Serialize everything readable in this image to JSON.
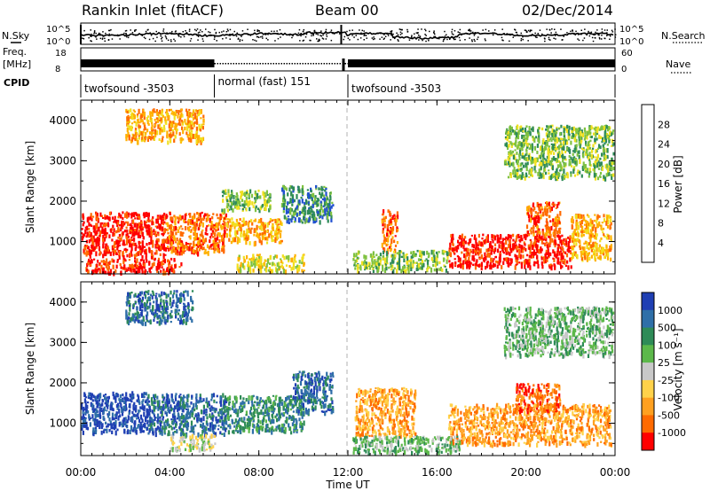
{
  "header": {
    "title": "Rankin Inlet (fitACF)",
    "beam": "Beam 00",
    "date": "02/Dec/2014"
  },
  "summary_panel": {
    "left_label_1": "N.Sky",
    "left_label_2": "Freq.",
    "left_label_3": "[MHz]",
    "cpid_label": "CPID",
    "right_label_1": "N.Search",
    "right_label_2": "Nave",
    "nsky_ticks": [
      "10^5",
      "10^0"
    ],
    "freq_ticks": [
      "18",
      "8"
    ],
    "nave_ticks": [
      "60",
      "0"
    ],
    "cpid_segments": [
      {
        "start_h": 0,
        "end_h": 6,
        "label": "twofsound -3503"
      },
      {
        "start_h": 6,
        "end_h": 12,
        "label": "normal (fast) 151"
      },
      {
        "start_h": 12,
        "end_h": 24,
        "label": "twofsound -3503"
      }
    ]
  },
  "x_axis": {
    "label": "Time UT",
    "ticks": [
      "00:00",
      "04:00",
      "08:00",
      "12:00",
      "16:00",
      "20:00",
      "00:00"
    ]
  },
  "chart_data": [
    {
      "type": "heatmap",
      "ylabel": "Slant Range [km]",
      "xlim_hours": [
        0,
        24
      ],
      "ylim": [
        200,
        4500
      ],
      "yticks": [
        "1000",
        "2000",
        "3000",
        "4000"
      ],
      "colorbar": {
        "label": "Power [dB]",
        "ticks": [
          "4",
          "8",
          "12",
          "16",
          "20",
          "24",
          "28"
        ],
        "colors": [
          "#0000ff",
          "#2050d0",
          "#2e8b57",
          "#7fc241",
          "#f0e020",
          "#ffb000",
          "#ff6a00",
          "#ff0000"
        ]
      },
      "echo_regions": [
        {
          "t0": 0.0,
          "t1": 3.8,
          "r0": 650,
          "r1": 1750,
          "level": 7
        },
        {
          "t0": 3.8,
          "t1": 6.5,
          "r0": 750,
          "r1": 1750,
          "level": 6
        },
        {
          "t0": 6.5,
          "t1": 9.0,
          "r0": 1000,
          "r1": 1600,
          "level": 5
        },
        {
          "t0": 9.0,
          "t1": 11.3,
          "r0": 1500,
          "r1": 2400,
          "level": 2
        },
        {
          "t0": 13.5,
          "t1": 14.2,
          "r0": 800,
          "r1": 1800,
          "level": 6
        },
        {
          "t0": 16.5,
          "t1": 22.0,
          "r0": 400,
          "r1": 1200,
          "level": 7
        },
        {
          "t0": 22.0,
          "t1": 23.8,
          "r0": 600,
          "r1": 1700,
          "level": 5
        },
        {
          "t0": 20.0,
          "t1": 21.5,
          "r0": 1200,
          "r1": 2000,
          "level": 6
        },
        {
          "t0": 0.2,
          "t1": 4.5,
          "r0": 250,
          "r1": 600,
          "level": 7
        },
        {
          "t0": 7.0,
          "t1": 10.0,
          "r0": 300,
          "r1": 700,
          "level": 4
        },
        {
          "t0": 12.2,
          "t1": 16.5,
          "r0": 300,
          "r1": 800,
          "level": 3
        },
        {
          "t0": 6.3,
          "t1": 8.5,
          "r0": 1800,
          "r1": 2300,
          "level": 3
        },
        {
          "t0": 2.0,
          "t1": 5.5,
          "r0": 3500,
          "r1": 4300,
          "level": 5
        },
        {
          "t0": 19.0,
          "t1": 23.9,
          "r0": 2600,
          "r1": 3900,
          "level": 3
        }
      ]
    },
    {
      "type": "heatmap",
      "ylabel": "Slant Range [km]",
      "xlim_hours": [
        0,
        24
      ],
      "ylim": [
        200,
        4500
      ],
      "yticks": [
        "1000",
        "2000",
        "3000",
        "4000"
      ],
      "colorbar": {
        "label": "Velocity [m s⁻¹]",
        "ticks": [
          "1000",
          "500",
          "100",
          "25",
          "-25",
          "-100",
          "-500",
          "-1000"
        ],
        "colors": [
          "#1f3fb3",
          "#2f6fa8",
          "#2e8b57",
          "#5cb84a",
          "#c8c8c8",
          "#ffd24a",
          "#ffa020",
          "#ff6a00",
          "#ff0000"
        ]
      },
      "echo_regions": [
        {
          "t0": 0.0,
          "t1": 3.0,
          "r0": 800,
          "r1": 1800,
          "level": 0
        },
        {
          "t0": 3.0,
          "t1": 6.5,
          "r0": 750,
          "r1": 1750,
          "level": 1
        },
        {
          "t0": 6.5,
          "t1": 10.0,
          "r0": 800,
          "r1": 1700,
          "level": 2
        },
        {
          "t0": 9.5,
          "t1": 11.3,
          "r0": 1300,
          "r1": 2300,
          "level": 1
        },
        {
          "t0": 4.0,
          "t1": 6.0,
          "r0": 350,
          "r1": 750,
          "level": 4
        },
        {
          "t0": 12.3,
          "t1": 15.0,
          "r0": 700,
          "r1": 1900,
          "level": 6
        },
        {
          "t0": 16.5,
          "t1": 23.8,
          "r0": 500,
          "r1": 1500,
          "level": 6
        },
        {
          "t0": 19.5,
          "t1": 21.5,
          "r0": 1300,
          "r1": 2000,
          "level": 7
        },
        {
          "t0": 12.2,
          "t1": 17.0,
          "r0": 300,
          "r1": 700,
          "level": 3
        },
        {
          "t0": 2.0,
          "t1": 5.0,
          "r0": 3500,
          "r1": 4300,
          "level": 1
        },
        {
          "t0": 19.0,
          "t1": 23.9,
          "r0": 2700,
          "r1": 3900,
          "level": 3
        }
      ]
    }
  ]
}
